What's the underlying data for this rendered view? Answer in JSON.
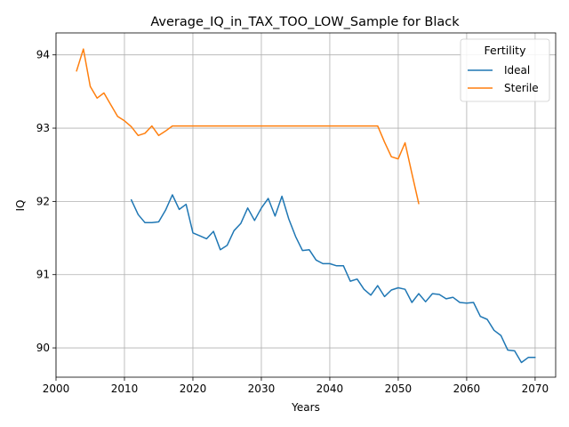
{
  "chart_data": {
    "type": "line",
    "title": "Average_IQ_in_TAX_TOO_LOW_Sample for Black",
    "xlabel": "Years",
    "ylabel": "IQ",
    "xlim": [
      2000,
      2073
    ],
    "ylim": [
      89.6,
      94.3
    ],
    "xticks": [
      2000,
      2010,
      2020,
      2030,
      2040,
      2050,
      2060,
      2070
    ],
    "yticks": [
      90,
      91,
      92,
      93,
      94
    ],
    "grid": true,
    "legend": {
      "title": "Fertility",
      "placement": "top-right"
    },
    "series": [
      {
        "name": "Ideal",
        "color": "#1f77b4",
        "x": [
          2011,
          2012,
          2013,
          2014,
          2015,
          2016,
          2017,
          2018,
          2019,
          2020,
          2021,
          2022,
          2023,
          2024,
          2025,
          2026,
          2027,
          2028,
          2029,
          2030,
          2031,
          2032,
          2033,
          2034,
          2035,
          2036,
          2037,
          2038,
          2039,
          2040,
          2041,
          2042,
          2043,
          2044,
          2045,
          2046,
          2047,
          2048,
          2049,
          2050,
          2051,
          2052,
          2053,
          2054,
          2055,
          2056,
          2057,
          2058,
          2059,
          2060,
          2061,
          2062,
          2063,
          2064,
          2065,
          2066,
          2067,
          2068,
          2069,
          2070
        ],
        "y": [
          92.02,
          91.82,
          91.71,
          91.71,
          91.72,
          91.88,
          92.09,
          91.89,
          91.96,
          91.57,
          91.53,
          91.49,
          91.59,
          91.34,
          91.4,
          91.6,
          91.7,
          91.91,
          91.74,
          91.91,
          92.04,
          91.8,
          92.07,
          91.76,
          91.52,
          91.33,
          91.34,
          91.2,
          91.15,
          91.15,
          91.12,
          91.12,
          90.91,
          90.94,
          90.8,
          90.72,
          90.85,
          90.7,
          90.79,
          90.82,
          90.8,
          90.62,
          90.74,
          90.63,
          90.74,
          90.73,
          90.67,
          90.69,
          90.62,
          90.61,
          90.62,
          90.43,
          90.39,
          90.24,
          90.17,
          89.97,
          89.96,
          89.8,
          89.87,
          89.87
        ]
      },
      {
        "name": "Sterile",
        "color": "#ff7f0e",
        "x": [
          2003,
          2004,
          2005,
          2006,
          2007,
          2008,
          2009,
          2010,
          2011,
          2012,
          2013,
          2014,
          2015,
          2016,
          2017,
          2018,
          2019,
          2020,
          2021,
          2022,
          2023,
          2024,
          2025,
          2026,
          2027,
          2028,
          2029,
          2030,
          2031,
          2032,
          2033,
          2034,
          2035,
          2036,
          2037,
          2038,
          2039,
          2040,
          2041,
          2042,
          2043,
          2044,
          2045,
          2046,
          2047,
          2048,
          2049,
          2050,
          2051,
          2052,
          2053
        ],
        "y": [
          93.78,
          94.08,
          93.57,
          93.41,
          93.48,
          93.32,
          93.16,
          93.1,
          93.02,
          92.9,
          92.93,
          93.03,
          92.9,
          92.96,
          93.03,
          93.03,
          93.03,
          93.03,
          93.03,
          93.03,
          93.03,
          93.03,
          93.03,
          93.03,
          93.03,
          93.03,
          93.03,
          93.03,
          93.03,
          93.03,
          93.03,
          93.03,
          93.03,
          93.03,
          93.03,
          93.03,
          93.03,
          93.03,
          93.03,
          93.03,
          93.03,
          93.03,
          93.03,
          93.03,
          93.03,
          92.81,
          92.61,
          92.58,
          92.8,
          92.38,
          91.97
        ]
      }
    ]
  }
}
